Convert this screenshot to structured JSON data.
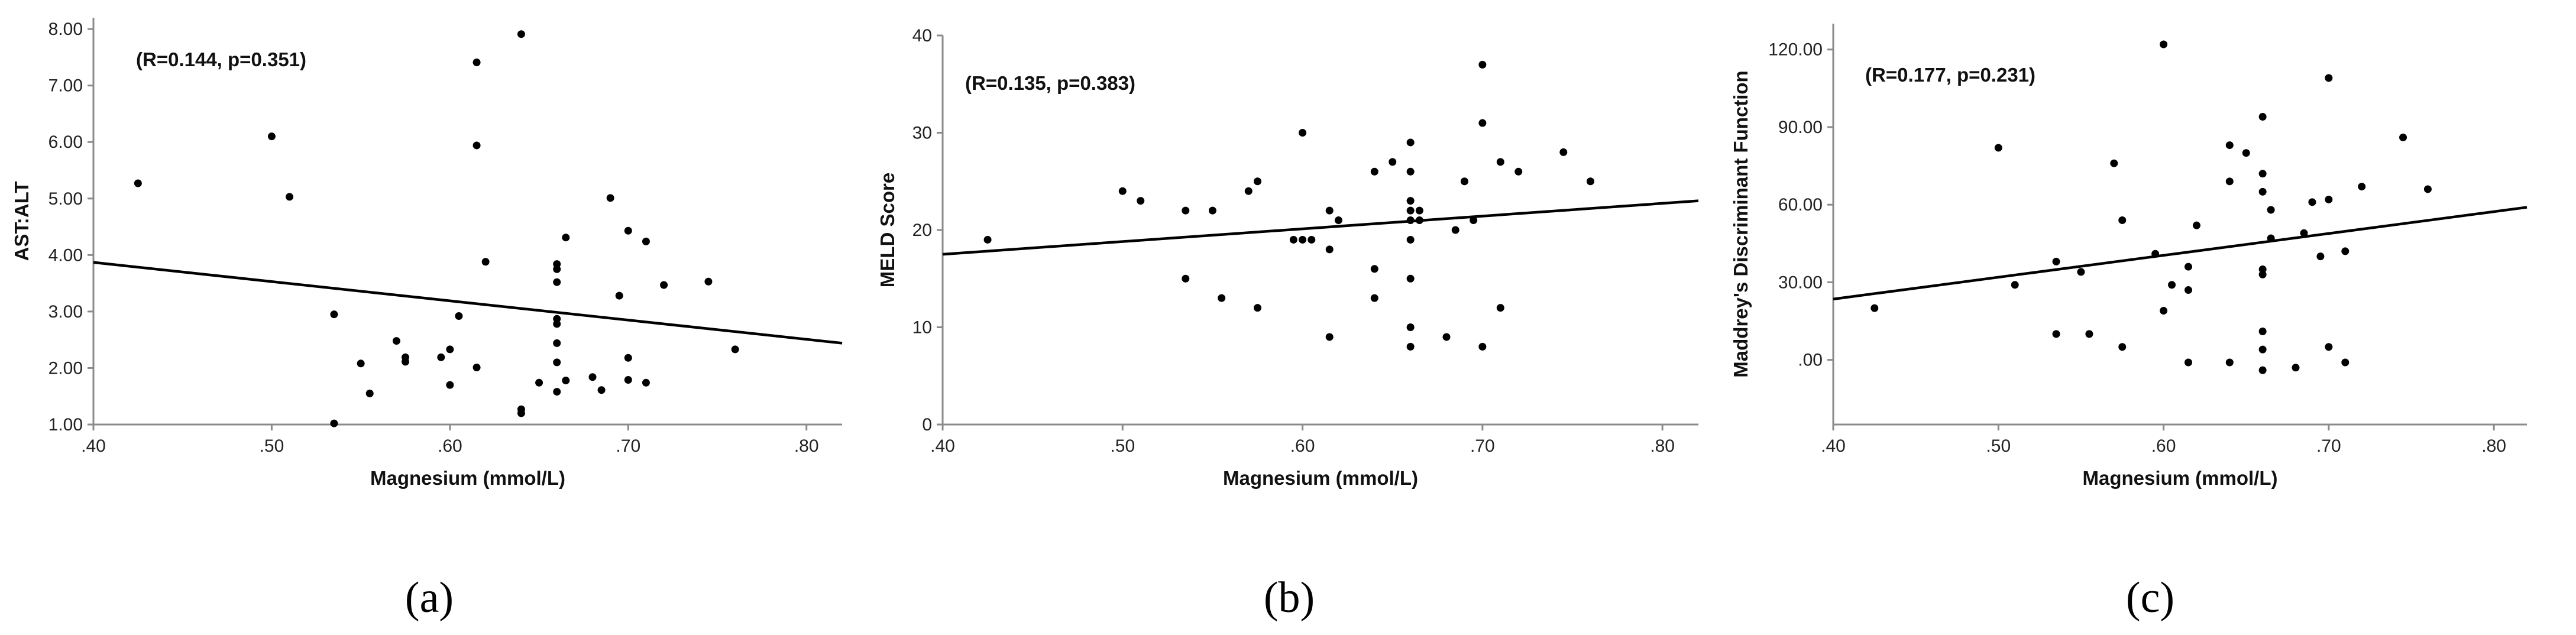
{
  "chart_data": [
    {
      "type": "scatter",
      "panel_label": "(a)",
      "annotation": "(R=0.144, p=0.351)",
      "xlabel": "Magnesium (mmol/L)",
      "ylabel": "AST:ALT",
      "xlim": [
        0.4,
        0.82
      ],
      "ylim": [
        1.0,
        8.2
      ],
      "xticks": [
        0.4,
        0.5,
        0.6,
        0.7,
        0.8
      ],
      "xtick_labels": [
        ".40",
        ".50",
        ".60",
        ".70",
        ".80"
      ],
      "yticks": [
        1,
        2,
        3,
        4,
        5,
        6,
        7,
        8
      ],
      "ytick_labels": [
        "1.00",
        "2.00",
        "3.00",
        "4.00",
        "5.00",
        "6.00",
        "7.00",
        "8.00"
      ],
      "fit_line": {
        "x": [
          0.4,
          0.82
        ],
        "y": [
          3.87,
          2.44
        ]
      },
      "points": [
        [
          0.425,
          5.27
        ],
        [
          0.5,
          6.1
        ],
        [
          0.51,
          5.03
        ],
        [
          0.535,
          2.95
        ],
        [
          0.535,
          1.02
        ],
        [
          0.55,
          2.08
        ],
        [
          0.555,
          1.55
        ],
        [
          0.57,
          2.48
        ],
        [
          0.575,
          2.19
        ],
        [
          0.575,
          2.11
        ],
        [
          0.595,
          2.19
        ],
        [
          0.6,
          2.33
        ],
        [
          0.6,
          1.7
        ],
        [
          0.605,
          2.92
        ],
        [
          0.615,
          7.41
        ],
        [
          0.615,
          5.94
        ],
        [
          0.62,
          3.88
        ],
        [
          0.615,
          2.01
        ],
        [
          0.64,
          7.91
        ],
        [
          0.64,
          1.27
        ],
        [
          0.64,
          1.2
        ],
        [
          0.65,
          1.74
        ],
        [
          0.66,
          3.84
        ],
        [
          0.66,
          3.75
        ],
        [
          0.66,
          3.52
        ],
        [
          0.66,
          2.87
        ],
        [
          0.66,
          2.78
        ],
        [
          0.66,
          2.44
        ],
        [
          0.66,
          2.1
        ],
        [
          0.66,
          1.58
        ],
        [
          0.665,
          4.31
        ],
        [
          0.665,
          1.78
        ],
        [
          0.68,
          1.84
        ],
        [
          0.685,
          1.61
        ],
        [
          0.69,
          5.01
        ],
        [
          0.695,
          3.28
        ],
        [
          0.7,
          4.43
        ],
        [
          0.7,
          2.18
        ],
        [
          0.7,
          1.79
        ],
        [
          0.71,
          4.24
        ],
        [
          0.71,
          1.74
        ],
        [
          0.72,
          3.47
        ],
        [
          0.745,
          3.53
        ],
        [
          0.76,
          2.33
        ]
      ]
    },
    {
      "type": "scatter",
      "panel_label": "(b)",
      "annotation": "(R=0.135, p=0.383)",
      "xlabel": "Magnesium (mmol/L)",
      "ylabel": "MELD Score",
      "xlim": [
        0.4,
        0.82
      ],
      "ylim": [
        0,
        40
      ],
      "xticks": [
        0.4,
        0.5,
        0.6,
        0.7,
        0.8
      ],
      "xtick_labels": [
        ".40",
        ".50",
        ".60",
        ".70",
        ".80"
      ],
      "yticks": [
        0,
        10,
        20,
        30,
        40
      ],
      "ytick_labels": [
        "0",
        "10",
        "20",
        "30",
        "40"
      ],
      "fit_line": {
        "x": [
          0.4,
          0.82
        ],
        "y": [
          17.5,
          23.0
        ]
      },
      "points": [
        [
          0.425,
          19
        ],
        [
          0.5,
          24
        ],
        [
          0.51,
          23
        ],
        [
          0.535,
          22
        ],
        [
          0.535,
          15
        ],
        [
          0.55,
          22
        ],
        [
          0.555,
          13
        ],
        [
          0.57,
          24
        ],
        [
          0.575,
          25
        ],
        [
          0.575,
          12
        ],
        [
          0.595,
          19
        ],
        [
          0.6,
          19
        ],
        [
          0.6,
          30
        ],
        [
          0.605,
          19
        ],
        [
          0.615,
          22
        ],
        [
          0.615,
          18
        ],
        [
          0.62,
          21
        ],
        [
          0.615,
          9
        ],
        [
          0.64,
          26
        ],
        [
          0.64,
          16
        ],
        [
          0.64,
          13
        ],
        [
          0.65,
          27
        ],
        [
          0.66,
          29
        ],
        [
          0.66,
          26
        ],
        [
          0.66,
          23
        ],
        [
          0.66,
          22
        ],
        [
          0.66,
          21
        ],
        [
          0.66,
          19
        ],
        [
          0.66,
          15
        ],
        [
          0.66,
          10
        ],
        [
          0.66,
          8
        ],
        [
          0.665,
          22
        ],
        [
          0.665,
          21
        ],
        [
          0.68,
          9
        ],
        [
          0.685,
          20
        ],
        [
          0.69,
          25
        ],
        [
          0.695,
          21
        ],
        [
          0.7,
          37
        ],
        [
          0.7,
          31
        ],
        [
          0.7,
          8
        ],
        [
          0.71,
          27
        ],
        [
          0.71,
          12
        ],
        [
          0.72,
          26
        ],
        [
          0.745,
          28
        ],
        [
          0.76,
          25
        ]
      ]
    },
    {
      "type": "scatter",
      "panel_label": "(c)",
      "annotation": "(R=0.177, p=0.231)",
      "xlabel": "Magnesium (mmol/L)",
      "ylabel": "Maddrey's Discriminant Function",
      "xlim": [
        0.4,
        0.82
      ],
      "ylim": [
        -25,
        130
      ],
      "xticks": [
        0.4,
        0.5,
        0.6,
        0.7,
        0.8
      ],
      "xtick_labels": [
        ".40",
        ".50",
        ".60",
        ".70",
        ".80"
      ],
      "yticks": [
        0,
        30,
        60,
        90,
        120
      ],
      "ytick_labels": [
        ".00",
        "30.00",
        "60.00",
        "90.00",
        "120.00"
      ],
      "fit_line": {
        "x": [
          0.4,
          0.82
        ],
        "y": [
          23.5,
          59.0
        ]
      },
      "points": [
        [
          0.425,
          20
        ],
        [
          0.5,
          82
        ],
        [
          0.51,
          29
        ],
        [
          0.535,
          38
        ],
        [
          0.535,
          10
        ],
        [
          0.55,
          34
        ],
        [
          0.555,
          10
        ],
        [
          0.57,
          76
        ],
        [
          0.575,
          54
        ],
        [
          0.575,
          5
        ],
        [
          0.595,
          41
        ],
        [
          0.6,
          122
        ],
        [
          0.6,
          19
        ],
        [
          0.605,
          29
        ],
        [
          0.615,
          36
        ],
        [
          0.615,
          27
        ],
        [
          0.62,
          52
        ],
        [
          0.615,
          -1
        ],
        [
          0.64,
          83
        ],
        [
          0.64,
          69
        ],
        [
          0.64,
          -1
        ],
        [
          0.65,
          80
        ],
        [
          0.66,
          94
        ],
        [
          0.66,
          72
        ],
        [
          0.66,
          65
        ],
        [
          0.66,
          35
        ],
        [
          0.66,
          33
        ],
        [
          0.66,
          11
        ],
        [
          0.66,
          4
        ],
        [
          0.66,
          -4
        ],
        [
          0.665,
          58
        ],
        [
          0.665,
          47
        ],
        [
          0.68,
          -3
        ],
        [
          0.685,
          49
        ],
        [
          0.69,
          61
        ],
        [
          0.695,
          40
        ],
        [
          0.7,
          109
        ],
        [
          0.7,
          62
        ],
        [
          0.7,
          5
        ],
        [
          0.71,
          42
        ],
        [
          0.71,
          -1
        ],
        [
          0.72,
          67
        ],
        [
          0.745,
          86
        ],
        [
          0.76,
          66
        ]
      ]
    }
  ]
}
